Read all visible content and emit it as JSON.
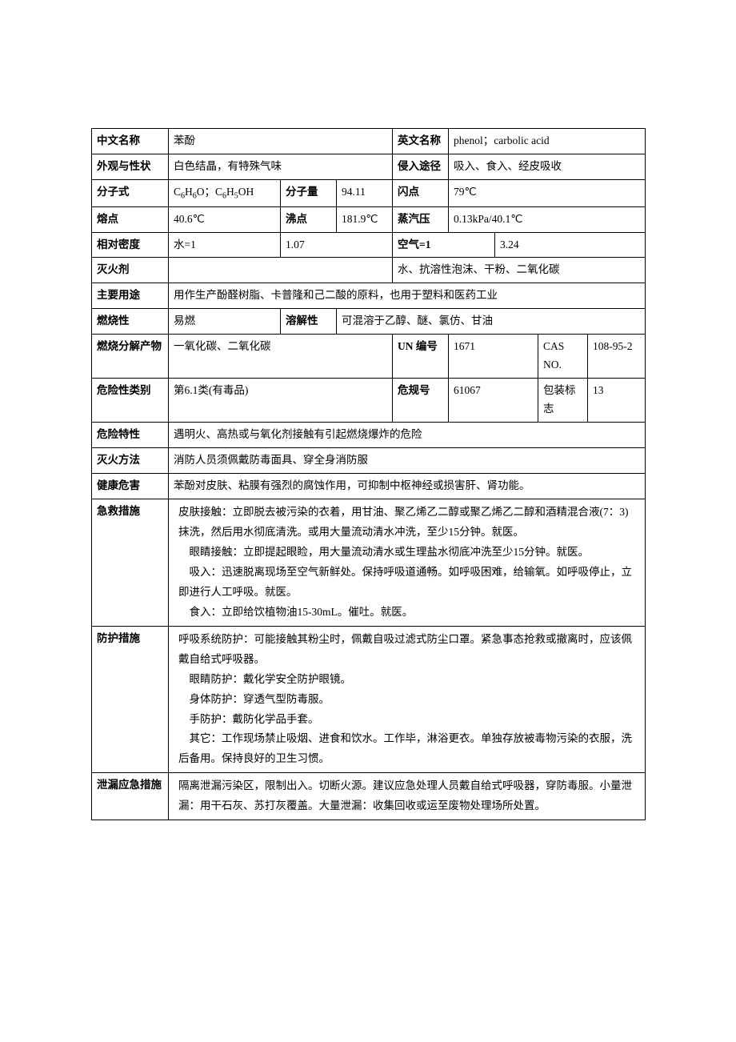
{
  "labels": {
    "name_cn": "中文名称",
    "name_en": "英文名称",
    "appearance": "外观与性状",
    "entry_route": "侵入途径",
    "formula": "分子式",
    "mol_weight": "分子量",
    "flash_point": "闪点",
    "melting_point": "熔点",
    "boiling_point": "沸点",
    "vapor_pressure": "蒸汽压",
    "rel_density": "相对密度",
    "water_eq": "水=1",
    "air_eq": "空气=1",
    "extinguishing_agent": "灭火剂",
    "main_use": "主要用途",
    "flammability": "燃烧性",
    "solubility": "溶解性",
    "combustion_products": "燃烧分解产物",
    "un_number": "UN 编号",
    "cas_no": "CAS NO.",
    "hazard_class": "危险性类别",
    "danger_code": "危规号",
    "packaging_mark": "包装标志",
    "hazard_char": "危险特性",
    "fire_fighting": "灭火方法",
    "health_hazard": "健康危害",
    "first_aid": "急救措施",
    "protection": "防护措施",
    "leak_response": "泄漏应急措施"
  },
  "values": {
    "name_cn": "苯酚",
    "name_en": "phenol；carbolic acid",
    "appearance": "白色结晶，有特殊气味",
    "entry_route": "吸入、食入、经皮吸收",
    "formula_html": "C<span class=\"sub\">6</span>H<span class=\"sub\">6</span>O；C<span class=\"sub\">6</span>H<span class=\"sub\">5</span>OH",
    "mol_weight": "94.11",
    "flash_point": "79℃",
    "melting_point": "40.6℃",
    "boiling_point": "181.9℃",
    "vapor_pressure": "0.13kPa/40.1℃",
    "rel_density_water": "1.07",
    "rel_density_air": "3.24",
    "extinguishing_agent": "水、抗溶性泡沫、干粉、二氧化碳",
    "main_use": "用作生产酚醛树脂、卡普隆和己二酸的原料，也用于塑料和医药工业",
    "flammability": "易燃",
    "solubility": "可混溶于乙醇、醚、氯仿、甘油",
    "combustion_products": "一氧化碳、二氧化碳",
    "un_number": "1671",
    "cas_no": "108-95-2",
    "hazard_class": " 第6.1类(有毒品)",
    "danger_code": "61067",
    "packaging_mark": "13",
    "hazard_char": "遇明火、高热或与氧化剂接触有引起燃烧爆炸的危险",
    "fire_fighting": "消防人员须佩戴防毒面具、穿全身消防服",
    "health_hazard": "苯酚对皮肤、粘膜有强烈的腐蚀作用，可抑制中枢神经或损害肝、肾功能。",
    "first_aid": "皮肤接触：立即脱去被污染的衣着，用甘油、聚乙烯乙二醇或聚乙烯乙二醇和酒精混合液(7：3)抹洗，然后用水彻底清洗。或用大量流动清水冲洗，至少15分钟。就医。\n　眼睛接触：立即提起眼睑，用大量流动清水或生理盐水彻底冲洗至少15分钟。就医。\n　吸入：迅速脱离现场至空气新鲜处。保持呼吸道通畅。如呼吸困难，给输氧。如呼吸停止，立即进行人工呼吸。就医。\n　食入：立即给饮植物油15-30mL。催吐。就医。",
    "protection": "呼吸系统防护：可能接触其粉尘时，佩戴自吸过滤式防尘口罩。紧急事态抢救或撤离时，应该佩戴自给式呼吸器。\n　眼睛防护：戴化学安全防护眼镜。\n　身体防护：穿透气型防毒服。\n　手防护：戴防化学品手套。\n　其它：工作现场禁止吸烟、进食和饮水。工作毕，淋浴更衣。单独存放被毒物污染的衣服，洗后备用。保持良好的卫生习惯。",
    "leak_response": "隔离泄漏污染区，限制出入。切断火源。建议应急处理人员戴自给式呼吸器，穿防毒服。小量泄漏：用干石灰、苏打灰覆盖。大量泄漏：收集回收或运至废物处理场所处置。"
  }
}
